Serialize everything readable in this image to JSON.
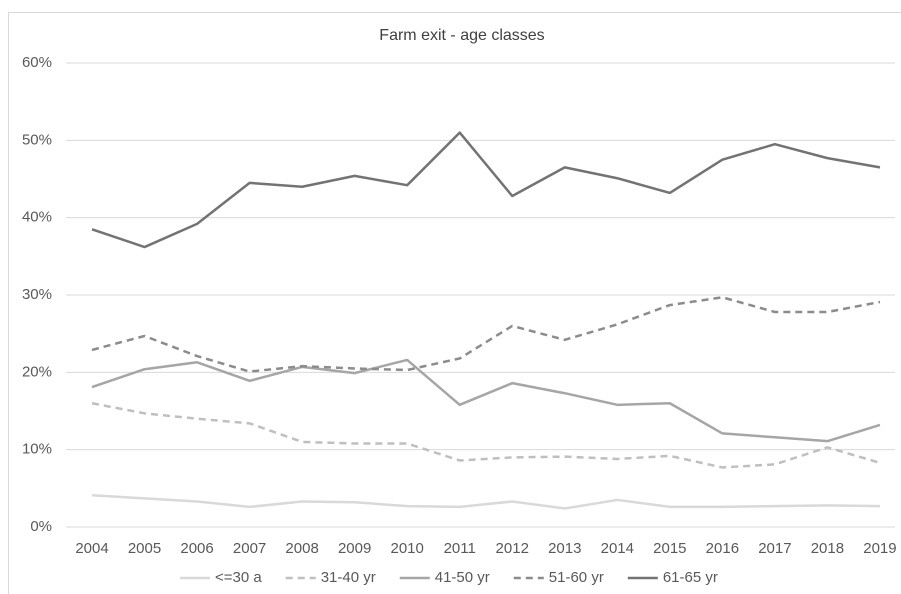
{
  "chart_data": {
    "type": "line",
    "title": "Farm exit - age classes",
    "categories": [
      "2004",
      "2005",
      "2006",
      "2007",
      "2008",
      "2009",
      "2010",
      "2011",
      "2012",
      "2013",
      "2014",
      "2015",
      "2016",
      "2017",
      "2018",
      "2019"
    ],
    "series": [
      {
        "name": "<=30 a",
        "color": "#d9d9d9",
        "dashed": false,
        "values": [
          4.1,
          3.7,
          3.3,
          2.6,
          3.3,
          3.2,
          2.7,
          2.6,
          3.3,
          2.4,
          3.5,
          2.6,
          2.6,
          2.7,
          2.8,
          2.7
        ]
      },
      {
        "name": "31-40 yr",
        "color": "#bfbfbf",
        "dashed": true,
        "values": [
          16.0,
          14.7,
          14.0,
          13.4,
          11.0,
          10.8,
          10.8,
          8.6,
          9.0,
          9.1,
          8.8,
          9.2,
          7.7,
          8.1,
          10.3,
          8.3
        ]
      },
      {
        "name": "41-50 yr",
        "color": "#a6a6a6",
        "dashed": false,
        "values": [
          18.1,
          20.4,
          21.3,
          18.9,
          20.7,
          19.9,
          21.6,
          15.8,
          18.6,
          17.3,
          15.8,
          16.0,
          12.1,
          11.6,
          11.1,
          13.2
        ]
      },
      {
        "name": "51-60 yr",
        "color": "#8c8c8c",
        "dashed": true,
        "values": [
          22.9,
          24.7,
          22.1,
          20.1,
          20.8,
          20.5,
          20.3,
          21.8,
          26.0,
          24.2,
          26.2,
          28.7,
          29.7,
          27.8,
          27.8,
          29.1
        ]
      },
      {
        "name": "61-65 yr",
        "color": "#737373",
        "dashed": false,
        "values": [
          38.5,
          36.2,
          39.2,
          44.5,
          44.0,
          45.4,
          44.2,
          51.0,
          42.8,
          46.5,
          45.1,
          43.2,
          47.5,
          49.5,
          47.7,
          46.5
        ]
      }
    ],
    "ylim": [
      0,
      60
    ],
    "yticks": [
      {
        "value": 0,
        "label": "0%"
      },
      {
        "value": 10,
        "label": "10%"
      },
      {
        "value": 20,
        "label": "20%"
      },
      {
        "value": 30,
        "label": "30%"
      },
      {
        "value": 40,
        "label": "40%"
      },
      {
        "value": 50,
        "label": "50%"
      },
      {
        "value": 60,
        "label": "60%"
      }
    ],
    "grid": true,
    "legend": "bottom"
  }
}
